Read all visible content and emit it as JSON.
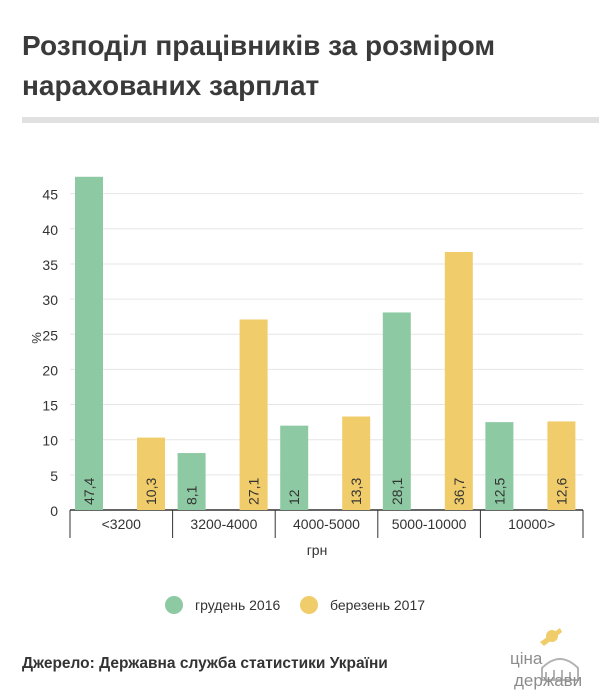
{
  "page": {
    "title": "Розподіл працівників за розміром нарахованих зарплат",
    "source": "Джерело: Державна служба статистики України",
    "logo": {
      "word1": "ціна",
      "word2": "держави",
      "icon": "parliament-dome-logo"
    }
  },
  "colors": {
    "series1": "#8dc9a2",
    "series2": "#f0cc6a",
    "axis": "#333333",
    "grid": "#e6e6e6"
  },
  "chart_data": {
    "type": "bar",
    "title": "Розподіл працівників за розміром нарахованих зарплат",
    "xlabel": "грн",
    "ylabel": "%",
    "ylim": [
      0,
      47.4
    ],
    "yticks": [
      0,
      5,
      10,
      15,
      20,
      25,
      30,
      35,
      40,
      45
    ],
    "grid": true,
    "legend_position": "bottom",
    "categories": [
      "<3200",
      "3200-4000",
      "4000-5000",
      "5000-10000",
      "10000>"
    ],
    "series": [
      {
        "name": "грудень 2016",
        "values": [
          47.4,
          8.1,
          12,
          28.1,
          12.5
        ],
        "labels": [
          "47,4",
          "8,1",
          "12",
          "28,1",
          "12,5"
        ]
      },
      {
        "name": "березень 2017",
        "values": [
          10.3,
          27.1,
          13.3,
          36.7,
          12.6
        ],
        "labels": [
          "10,3",
          "27,1",
          "13,3",
          "36,7",
          "12,6"
        ]
      }
    ]
  }
}
